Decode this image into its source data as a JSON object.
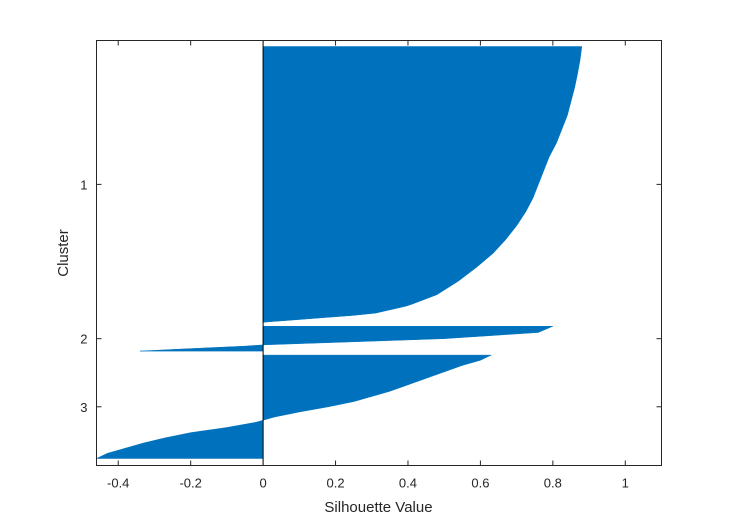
{
  "chart_data": {
    "type": "area",
    "subtype": "silhouette",
    "title": "",
    "xlabel": "Silhouette Value",
    "ylabel": "Cluster",
    "xlim": [
      -0.46,
      1.1
    ],
    "xticks": [
      -0.4,
      -0.2,
      0,
      0.2,
      0.4,
      0.6,
      0.8,
      1
    ],
    "xtick_labels": [
      "-0.4",
      "-0.2",
      "0",
      "0.2",
      "0.4",
      "0.6",
      "0.8",
      "1"
    ],
    "ytick_labels": [
      "1",
      "2",
      "3"
    ],
    "grid": false,
    "fill_color": "#0072BD",
    "clusters": [
      {
        "label": "1",
        "samples": 400,
        "profile": [
          [
            0.0,
            0.88
          ],
          [
            0.05,
            0.875
          ],
          [
            0.1,
            0.868
          ],
          [
            0.15,
            0.86
          ],
          [
            0.2,
            0.85
          ],
          [
            0.25,
            0.84
          ],
          [
            0.3,
            0.825
          ],
          [
            0.35,
            0.81
          ],
          [
            0.4,
            0.79
          ],
          [
            0.45,
            0.775
          ],
          [
            0.5,
            0.76
          ],
          [
            0.55,
            0.745
          ],
          [
            0.6,
            0.725
          ],
          [
            0.65,
            0.7
          ],
          [
            0.7,
            0.67
          ],
          [
            0.75,
            0.635
          ],
          [
            0.8,
            0.59
          ],
          [
            0.85,
            0.54
          ],
          [
            0.9,
            0.48
          ],
          [
            0.94,
            0.4
          ],
          [
            0.97,
            0.3
          ],
          [
            1.0,
            0.0
          ]
        ]
      },
      {
        "label": "2",
        "samples": 36,
        "profile": [
          [
            0.0,
            0.8
          ],
          [
            0.25,
            0.76
          ],
          [
            0.5,
            0.5
          ],
          [
            0.6,
            0.3
          ],
          [
            0.7,
            0.1
          ],
          [
            0.75,
            0.0
          ],
          [
            0.8,
            -0.05
          ],
          [
            0.9,
            -0.2
          ],
          [
            1.0,
            -0.34
          ]
        ]
      },
      {
        "label": "3",
        "samples": 150,
        "profile": [
          [
            0.0,
            0.63
          ],
          [
            0.05,
            0.6
          ],
          [
            0.1,
            0.55
          ],
          [
            0.15,
            0.51
          ],
          [
            0.2,
            0.47
          ],
          [
            0.25,
            0.43
          ],
          [
            0.3,
            0.39
          ],
          [
            0.35,
            0.35
          ],
          [
            0.4,
            0.3
          ],
          [
            0.45,
            0.25
          ],
          [
            0.5,
            0.18
          ],
          [
            0.55,
            0.1
          ],
          [
            0.6,
            0.03
          ],
          [
            0.65,
            -0.02
          ],
          [
            0.7,
            -0.1
          ],
          [
            0.75,
            -0.2
          ],
          [
            0.8,
            -0.27
          ],
          [
            0.85,
            -0.33
          ],
          [
            0.9,
            -0.38
          ],
          [
            0.95,
            -0.43
          ],
          [
            1.0,
            -0.46
          ]
        ]
      }
    ]
  }
}
